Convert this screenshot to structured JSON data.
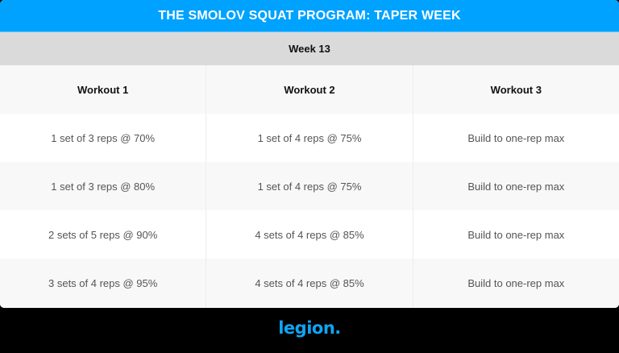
{
  "title": "THE SMOLOV SQUAT PROGRAM: TAPER WEEK",
  "week_label": "Week 13",
  "columns": [
    "Workout 1",
    "Workout 2",
    "Workout 3"
  ],
  "rows": [
    [
      "1 set of 3 reps @ 70%",
      "1 set of 4 reps @ 75%",
      "Build to one-rep max"
    ],
    [
      "1 set of 3 reps @ 80%",
      "1 set of 4 reps @ 75%",
      "Build to one-rep max"
    ],
    [
      "2 sets of 5 reps @ 90%",
      "4 sets of 4 reps @ 85%",
      "Build to one-rep max"
    ],
    [
      "3 sets of 4 reps @ 95%",
      "4 sets of 4 reps @ 85%",
      "Build to one-rep max"
    ]
  ],
  "logo": "legion.",
  "colors": {
    "title_bg": "#00a2ff",
    "week_bg": "#dadada",
    "alt_row_bg": "#f8f8f8",
    "logo": "#0ea5f5",
    "page_bg": "#000000"
  }
}
